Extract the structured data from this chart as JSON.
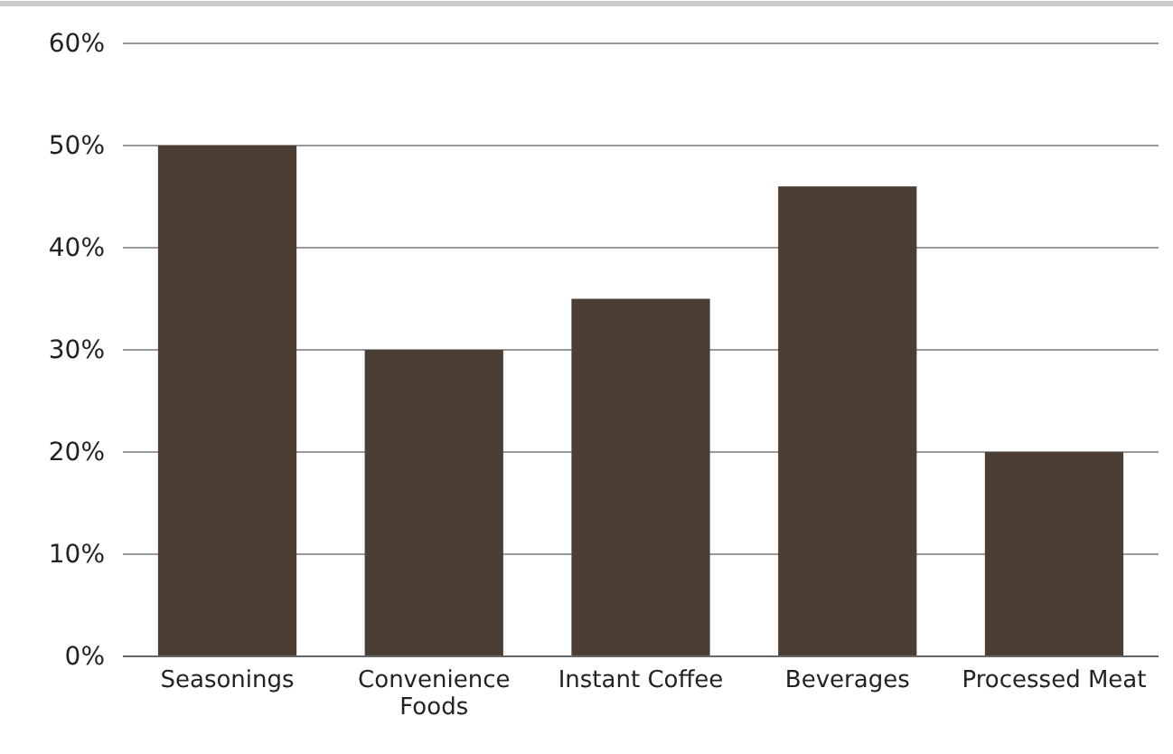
{
  "chart_data": {
    "type": "bar",
    "categories": [
      "Seasonings",
      "Convenience Foods",
      "Instant Coffee",
      "Beverages",
      "Processed Meat"
    ],
    "values": [
      50,
      30,
      35,
      46,
      20
    ],
    "color": "#4d3e33",
    "ylim": [
      0,
      60
    ],
    "yticks": [
      {
        "value": 0,
        "label": "0%"
      },
      {
        "value": 10,
        "label": "10%"
      },
      {
        "value": 20,
        "label": "20%"
      },
      {
        "value": 30,
        "label": "30%"
      },
      {
        "value": 40,
        "label": "40%"
      },
      {
        "value": 50,
        "label": "50%"
      },
      {
        "value": 60,
        "label": "60%"
      }
    ],
    "grid": "y"
  }
}
